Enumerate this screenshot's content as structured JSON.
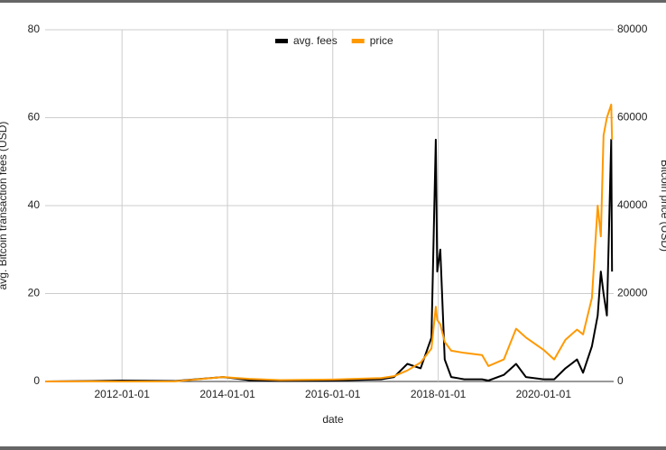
{
  "chart_data": {
    "type": "line",
    "x_label": "date",
    "y_label": "avg. Bitcoin transaction fees (USD)",
    "y2_label": "Bitcoin price (USD)",
    "x": [
      "2010-07-17",
      "2011-06-01",
      "2012-01-01",
      "2013-01-01",
      "2013-12-01",
      "2014-06-01",
      "2015-01-01",
      "2016-01-01",
      "2016-12-01",
      "2017-03-01",
      "2017-06-01",
      "2017-09-01",
      "2017-11-15",
      "2017-12-15",
      "2017-12-25",
      "2018-01-15",
      "2018-02-15",
      "2018-04-01",
      "2018-07-01",
      "2018-11-01",
      "2018-12-15",
      "2019-04-01",
      "2019-06-25",
      "2019-09-01",
      "2020-01-01",
      "2020-03-15",
      "2020-06-01",
      "2020-08-20",
      "2020-10-01",
      "2020-12-01",
      "2021-01-10",
      "2021-02-01",
      "2021-02-20",
      "2021-03-15",
      "2021-04-14",
      "2021-04-20"
    ],
    "series": [
      {
        "name": "avg. fees",
        "color": "#000000",
        "values": [
          0,
          0.1,
          0.2,
          0.1,
          1,
          0.3,
          0.1,
          0.2,
          0.5,
          1,
          4,
          3,
          10,
          55,
          25,
          30,
          5,
          1,
          0.5,
          0.5,
          0.2,
          1.5,
          4,
          1,
          0.5,
          0.5,
          3,
          5,
          2,
          8,
          15,
          25,
          20,
          15,
          55,
          25
        ]
      },
      {
        "name": "price",
        "color": "#ff9900",
        "axis": "y2",
        "values": [
          0,
          20,
          5,
          13,
          1000,
          600,
          300,
          430,
          750,
          1200,
          2500,
          4300,
          7500,
          17000,
          14000,
          13000,
          9000,
          7000,
          6500,
          6000,
          3500,
          5000,
          12000,
          10000,
          7200,
          5000,
          9500,
          11800,
          10700,
          19000,
          40000,
          33000,
          56000,
          60000,
          63000,
          55000
        ]
      }
    ],
    "xlim": [
      "2010-07-17",
      "2021-05-01"
    ],
    "xticks": [
      "2012-01-01",
      "2014-01-01",
      "2016-01-01",
      "2018-01-01",
      "2020-01-01"
    ],
    "ylim": [
      0,
      80
    ],
    "yticks": [
      0,
      20,
      40,
      60,
      80
    ],
    "y2lim": [
      0,
      80000
    ],
    "y2ticks": [
      0,
      20000,
      40000,
      60000,
      80000
    ],
    "grid": true,
    "legend": "top"
  }
}
